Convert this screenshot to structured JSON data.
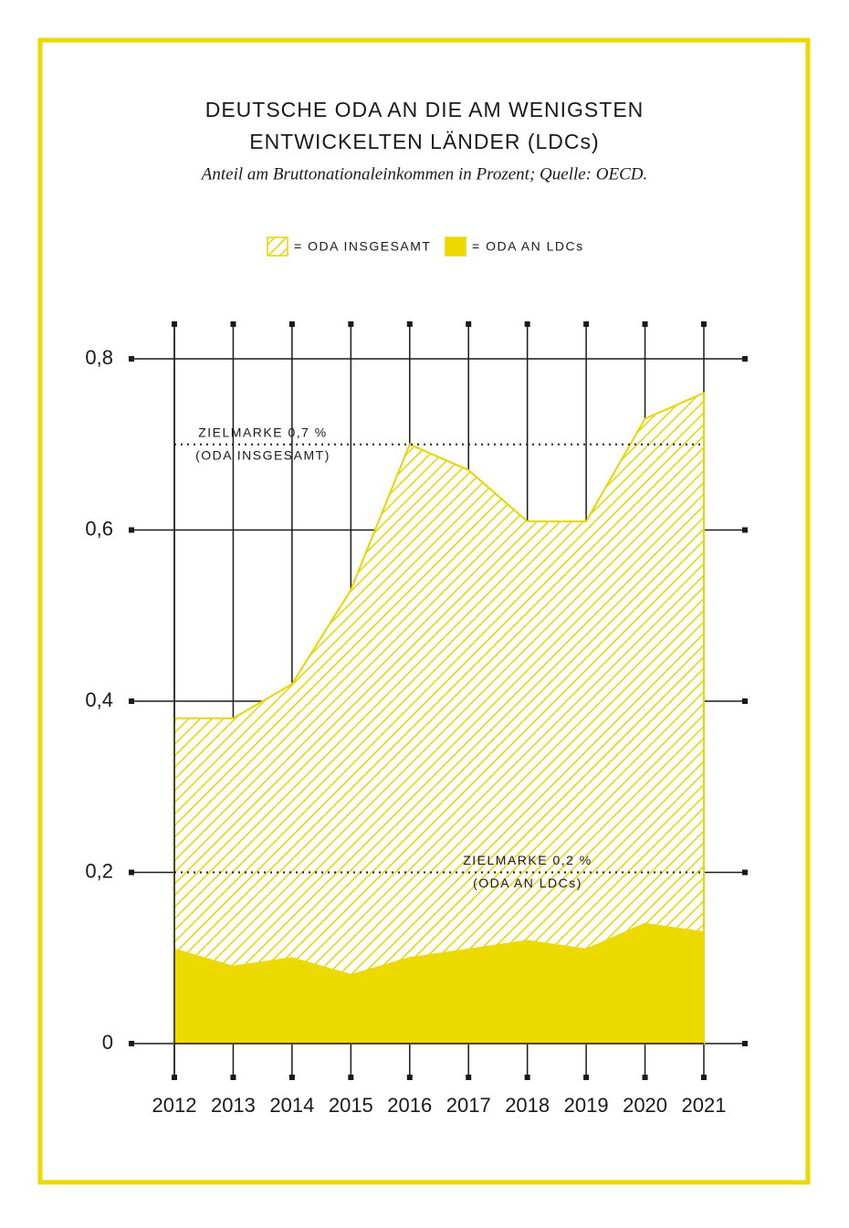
{
  "chart_data": {
    "type": "area",
    "title": [
      "DEUTSCHE ODA AN DIE AM WENIGSTEN",
      "ENTWICKELTEN LÄNDER (LDCs)"
    ],
    "subtitle": "Anteil am Bruttonationaleinkommen in Prozent; Quelle: OECD.",
    "frame_color": "#ecd900",
    "categories": [
      "2012",
      "2013",
      "2014",
      "2015",
      "2016",
      "2017",
      "2018",
      "2019",
      "2020",
      "2021"
    ],
    "series": [
      {
        "name": "= ODA INSGESAMT",
        "color": "#e6d600",
        "hatched": true,
        "values": [
          0.38,
          0.38,
          0.42,
          0.53,
          0.7,
          0.67,
          0.61,
          0.61,
          0.73,
          0.76
        ]
      },
      {
        "name": "= ODA AN LDCs",
        "color": "#ecd900",
        "hatched": false,
        "values": [
          0.11,
          0.09,
          0.1,
          0.08,
          0.1,
          0.11,
          0.12,
          0.11,
          0.14,
          0.13
        ]
      }
    ],
    "ylim": [
      0,
      0.8
    ],
    "yticks": [
      0,
      {
        "value": 0.2,
        "label": "0,2"
      },
      {
        "value": 0.4,
        "label": "0,4"
      },
      {
        "value": 0.6,
        "label": "0,6"
      },
      {
        "value": 0.8,
        "label": "0,8"
      }
    ],
    "grid": true,
    "reference_lines": [
      {
        "value": 0.7,
        "label": [
          "ZIELMARKE 0,7 %",
          "(ODA INSGESAMT)"
        ]
      },
      {
        "value": 0.2,
        "label": [
          "ZIELMARKE 0,2 %",
          "(ODA AN LDCs)"
        ]
      }
    ]
  }
}
